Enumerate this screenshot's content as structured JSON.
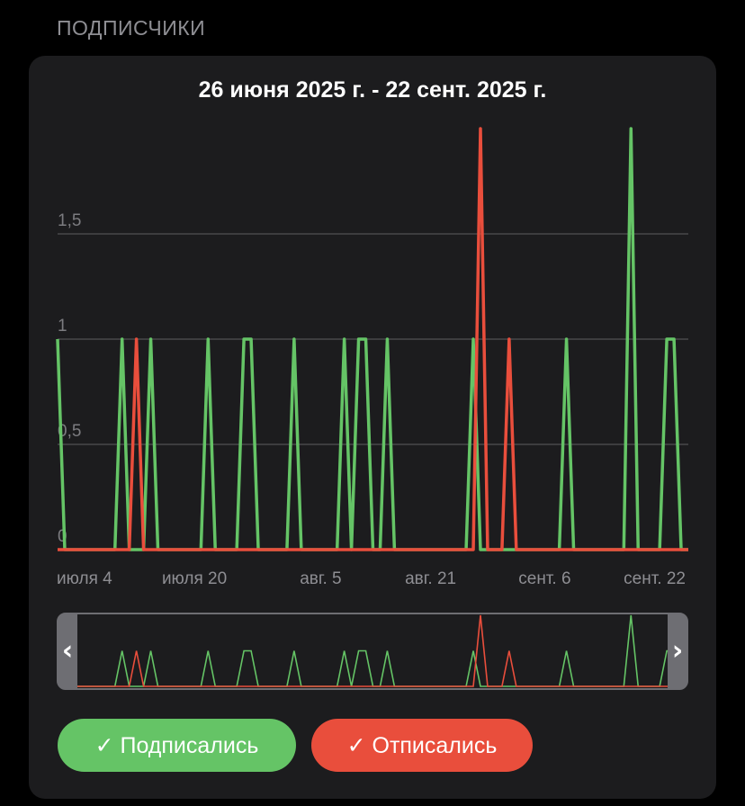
{
  "section_title": "ПОДПИСЧИКИ",
  "chart_data": {
    "type": "line",
    "title": "26 июня 2025 г. - 22 сент. 2025 г.",
    "x_tick_labels": [
      "июля 4",
      "июля 20",
      "авг. 5",
      "авг. 21",
      "сент. 6",
      "сент. 22"
    ],
    "x_tick_days": [
      8,
      24,
      40,
      56,
      72,
      88
    ],
    "y_tick_labels": [
      "0",
      "0,5",
      "1",
      "1,5"
    ],
    "y_ticks": [
      0,
      0.5,
      1,
      1.5
    ],
    "ylim": [
      0,
      2
    ],
    "grid": true,
    "series": [
      {
        "name": "Подписались",
        "color": "#65c466",
        "values": [
          1,
          0,
          0,
          0,
          0,
          0,
          0,
          0,
          0,
          1,
          0,
          0,
          0,
          1,
          0,
          0,
          0,
          0,
          0,
          0,
          0,
          1,
          0,
          0,
          0,
          0,
          1,
          1,
          0,
          0,
          0,
          0,
          0,
          1,
          0,
          0,
          0,
          0,
          0,
          0,
          1,
          0,
          1,
          1,
          0,
          0,
          1,
          0,
          0,
          0,
          0,
          0,
          0,
          0,
          0,
          0,
          0,
          0,
          1,
          0,
          0,
          0,
          0,
          0,
          0,
          0,
          0,
          0,
          0,
          0,
          0,
          1,
          0,
          0,
          0,
          0,
          0,
          0,
          0,
          0,
          2,
          0,
          0,
          0,
          0,
          1,
          1,
          0,
          0
        ]
      },
      {
        "name": "Отписались",
        "color": "#e94e3c",
        "values": [
          0,
          0,
          0,
          0,
          0,
          0,
          0,
          0,
          0,
          0,
          0,
          1,
          0,
          0,
          0,
          0,
          0,
          0,
          0,
          0,
          0,
          0,
          0,
          0,
          0,
          0,
          0,
          0,
          0,
          0,
          0,
          0,
          0,
          0,
          0,
          0,
          0,
          0,
          0,
          0,
          0,
          0,
          0,
          0,
          0,
          0,
          0,
          0,
          0,
          0,
          0,
          0,
          0,
          0,
          0,
          0,
          0,
          0,
          0,
          2,
          0,
          0,
          0,
          1,
          0,
          0,
          0,
          0,
          0,
          0,
          0,
          0,
          0,
          0,
          0,
          0,
          0,
          0,
          0,
          0,
          0,
          0,
          0,
          0,
          0,
          0,
          0,
          0,
          0
        ]
      }
    ]
  },
  "navigator": {
    "left_handle": "chevron-left-icon",
    "right_handle": "chevron-right-icon",
    "left_glyph": "‹",
    "right_glyph": "›"
  },
  "legend": [
    {
      "label": "✓ Подписались",
      "color": "#65c466"
    },
    {
      "label": "✓ Отписались",
      "color": "#e94e3c"
    }
  ]
}
